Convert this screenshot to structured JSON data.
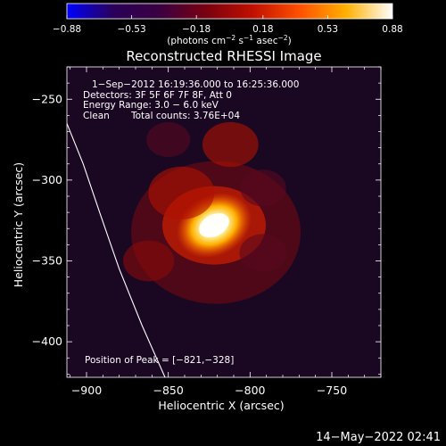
{
  "chart_data": {
    "type": "heatmap",
    "title": "Reconstructed RHESSI Image",
    "xlabel": "Heliocentric X (arcsec)",
    "ylabel": "Heliocentric Y (arcsec)",
    "xlim": [
      -912,
      -720
    ],
    "ylim": [
      -422,
      -230
    ],
    "x_ticks": [
      -900,
      -850,
      -800,
      -750
    ],
    "y_ticks": [
      -250,
      -300,
      -350,
      -400
    ],
    "x_tick_labels": [
      "−900",
      "−850",
      "−800",
      "−750"
    ],
    "y_tick_labels": [
      "−250",
      "−300",
      "−350",
      "−400"
    ],
    "colorbar": {
      "range": [
        -0.88,
        0.88
      ],
      "tick_values": [
        -0.88,
        -0.53,
        -0.18,
        0.18,
        0.53,
        0.88
      ],
      "tick_labels": [
        "−0.88",
        "−0.53",
        "−0.18",
        "0.18",
        "0.53",
        "0.88"
      ],
      "units_label": "(photons cm",
      "units_exp1": "−2",
      "units_mid": " s",
      "units_exp2": "−1",
      "units_mid2": " asec",
      "units_exp3": "−2",
      "units_close": ")",
      "colors": [
        "#0000ff",
        "#2a0058",
        "#3a0040",
        "#7a0010",
        "#c01000",
        "#ff5000",
        "#ffb000",
        "#ffffff"
      ]
    },
    "annotations": [
      "1−Sep−2012 16:19:36.000 to 16:25:36.000",
      "Detectors: 3F 5F 6F 7F 8F, Att 0",
      "Energy Range: 3.0 − 6.0 keV",
      "Clean",
      "Total counts: 3.76E+04"
    ],
    "peak_label": "Position of Peak = [−821,−328]",
    "peak": [
      -821,
      -328
    ],
    "limb_points": [
      [
        -912,
        -265
      ],
      [
        -902,
        -290
      ],
      [
        -892,
        -320
      ],
      [
        -880,
        -355
      ],
      [
        -866,
        -390
      ],
      [
        -852,
        -422
      ]
    ],
    "sources": [
      {
        "x": -822,
        "y": -328,
        "peak": 0.88
      },
      {
        "x": -842,
        "y": -308,
        "peak": 0.3
      },
      {
        "x": -812,
        "y": -278,
        "peak": 0.22
      },
      {
        "x": -862,
        "y": -350,
        "peak": 0.18
      },
      {
        "x": -792,
        "y": -345,
        "peak": 0.15
      },
      {
        "x": -792,
        "y": -305,
        "peak": 0.14
      },
      {
        "x": -850,
        "y": -275,
        "peak": 0.12
      }
    ]
  },
  "footer": {
    "date": "14−May−2022 02:41"
  }
}
